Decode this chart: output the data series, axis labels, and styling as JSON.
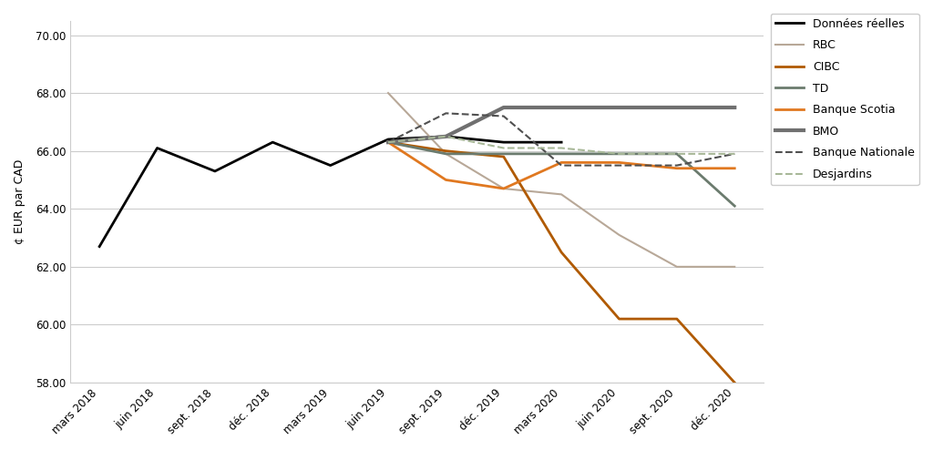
{
  "x_labels": [
    "mars 2018",
    "juin 2018",
    "sept. 2018",
    "déc. 2018",
    "mars 2019",
    "juin 2019",
    "sept. 2019",
    "déc. 2019",
    "mars 2020",
    "juin 2020",
    "sept. 2020",
    "déc. 2020"
  ],
  "x_indices": [
    0,
    1,
    2,
    3,
    4,
    5,
    6,
    7,
    8,
    9,
    10,
    11
  ],
  "series": [
    {
      "name": "Données réelles",
      "color": "#000000",
      "linestyle": "solid",
      "linewidth": 2.0,
      "data_x": [
        0,
        1,
        2,
        3,
        4,
        5,
        6,
        7,
        8
      ],
      "data_y": [
        62.7,
        66.1,
        65.3,
        66.3,
        65.5,
        66.4,
        66.5,
        66.3,
        66.3
      ]
    },
    {
      "name": "RBC",
      "color": "#b8a898",
      "linestyle": "solid",
      "linewidth": 1.5,
      "data_x": [
        5,
        6,
        7,
        8,
        9,
        10,
        11
      ],
      "data_y": [
        68.0,
        65.9,
        64.7,
        64.5,
        63.1,
        62.0,
        62.0
      ]
    },
    {
      "name": "CIBC",
      "color": "#b05a00",
      "linestyle": "solid",
      "linewidth": 2.0,
      "data_x": [
        5,
        6,
        7,
        8,
        9,
        10,
        11
      ],
      "data_y": [
        66.3,
        66.0,
        65.8,
        62.5,
        60.2,
        60.2,
        58.0
      ]
    },
    {
      "name": "TD",
      "color": "#6b7b6e",
      "linestyle": "solid",
      "linewidth": 2.0,
      "data_x": [
        5,
        6,
        7,
        8,
        9,
        10,
        11
      ],
      "data_y": [
        66.3,
        65.9,
        65.9,
        65.9,
        65.9,
        65.9,
        64.1
      ]
    },
    {
      "name": "Banque Scotia",
      "color": "#e07820",
      "linestyle": "solid",
      "linewidth": 2.0,
      "data_x": [
        5,
        6,
        7,
        8,
        9,
        10,
        11
      ],
      "data_y": [
        66.3,
        65.0,
        64.7,
        65.6,
        65.6,
        65.4,
        65.4
      ]
    },
    {
      "name": "BMO",
      "color": "#707070",
      "linestyle": "solid",
      "linewidth": 3.0,
      "data_x": [
        5,
        6,
        7,
        8,
        9,
        10,
        11
      ],
      "data_y": [
        66.3,
        66.5,
        67.5,
        67.5,
        67.5,
        67.5,
        67.5
      ]
    },
    {
      "name": "Banque Nationale",
      "color": "#505050",
      "linestyle": "dashed",
      "linewidth": 1.5,
      "data_x": [
        5,
        6,
        7,
        8,
        9,
        10,
        11
      ],
      "data_y": [
        66.3,
        67.3,
        67.2,
        65.5,
        65.5,
        65.5,
        65.9
      ]
    },
    {
      "name": "Desjardins",
      "color": "#a8b898",
      "linestyle": "dashed",
      "linewidth": 1.5,
      "data_x": [
        5,
        6,
        7,
        8,
        9,
        10,
        11
      ],
      "data_y": [
        66.3,
        66.5,
        66.1,
        66.1,
        65.9,
        65.9,
        65.9
      ]
    }
  ],
  "ylabel": "¢ EUR par CAD",
  "ylim": [
    58.0,
    70.5
  ],
  "yticks": [
    58.0,
    60.0,
    62.0,
    64.0,
    66.0,
    68.0,
    70.0
  ],
  "background_color": "#ffffff",
  "grid_color": "#cccccc",
  "legend_fontsize": 9,
  "axis_fontsize": 9,
  "tick_fontsize": 8.5
}
